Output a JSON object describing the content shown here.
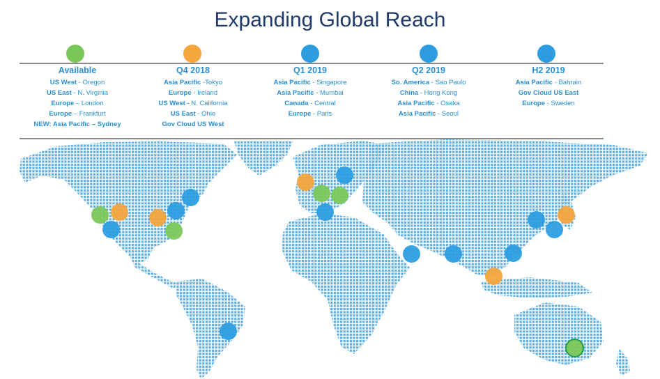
{
  "title": "Expanding Global Reach",
  "colors": {
    "available": "#7bc85a",
    "q4": "#f4a53c",
    "blue": "#2d9de0",
    "map": "#5aaee6",
    "text": "#2a8fd1"
  },
  "columns": [
    {
      "heading": "Available",
      "color": "green",
      "lines": [
        {
          "region": "US West",
          "sep": " - ",
          "city": "Oregon"
        },
        {
          "region": "US East",
          "sep": " - ",
          "city": "N. Virginia"
        },
        {
          "region": "Europe",
          "sep": " – ",
          "city": "London"
        },
        {
          "region": "Europe",
          "sep": " – ",
          "city": "Frankfurt"
        },
        {
          "region": "NEW: Asia Pacific – Sydney",
          "sep": "",
          "city": ""
        }
      ]
    },
    {
      "heading": "Q4 2018",
      "color": "orange",
      "lines": [
        {
          "region": "Asia Pacific",
          "sep": " -",
          "city": "Tokyo"
        },
        {
          "region": "Europe",
          "sep": " - ",
          "city": "Ireland"
        },
        {
          "region": "US West -",
          "sep": " ",
          "city": "N. California"
        },
        {
          "region": "US East",
          "sep": " - ",
          "city": "Ohio"
        },
        {
          "region": "Gov Cloud US West",
          "sep": "",
          "city": ""
        }
      ]
    },
    {
      "heading": "Q1 2019",
      "color": "blue",
      "lines": [
        {
          "region": "Asia Pacific",
          "sep": " - ",
          "city": "Singapore"
        },
        {
          "region": "Asia Pacific",
          "sep": " - ",
          "city": "Mumbai"
        },
        {
          "region": "Canada",
          "sep": " - ",
          "city": "Central"
        },
        {
          "region": "Europe",
          "sep": " - ",
          "city": "Paris"
        }
      ]
    },
    {
      "heading": "Q2 2019",
      "color": "blue",
      "lines": [
        {
          "region": "So. America",
          "sep": " - ",
          "city": "Sao Paulo"
        },
        {
          "region": "China",
          "sep": " - ",
          "city": "Hong Kong"
        },
        {
          "region": "Asia Pacific",
          "sep": " - ",
          "city": "Osaka"
        },
        {
          "region": "Asia Pacific",
          "sep": " - ",
          "city": "Seoul"
        }
      ]
    },
    {
      "heading": "H2 2019",
      "color": "blue",
      "lines": [
        {
          "region": "Asia Pacific",
          "sep": " - ",
          "city": "Bahrain"
        },
        {
          "region": "Gov Cloud US East",
          "sep": "",
          "city": ""
        },
        {
          "region": "Europe",
          "sep": " - ",
          "city": "Sweden"
        }
      ]
    }
  ]
}
